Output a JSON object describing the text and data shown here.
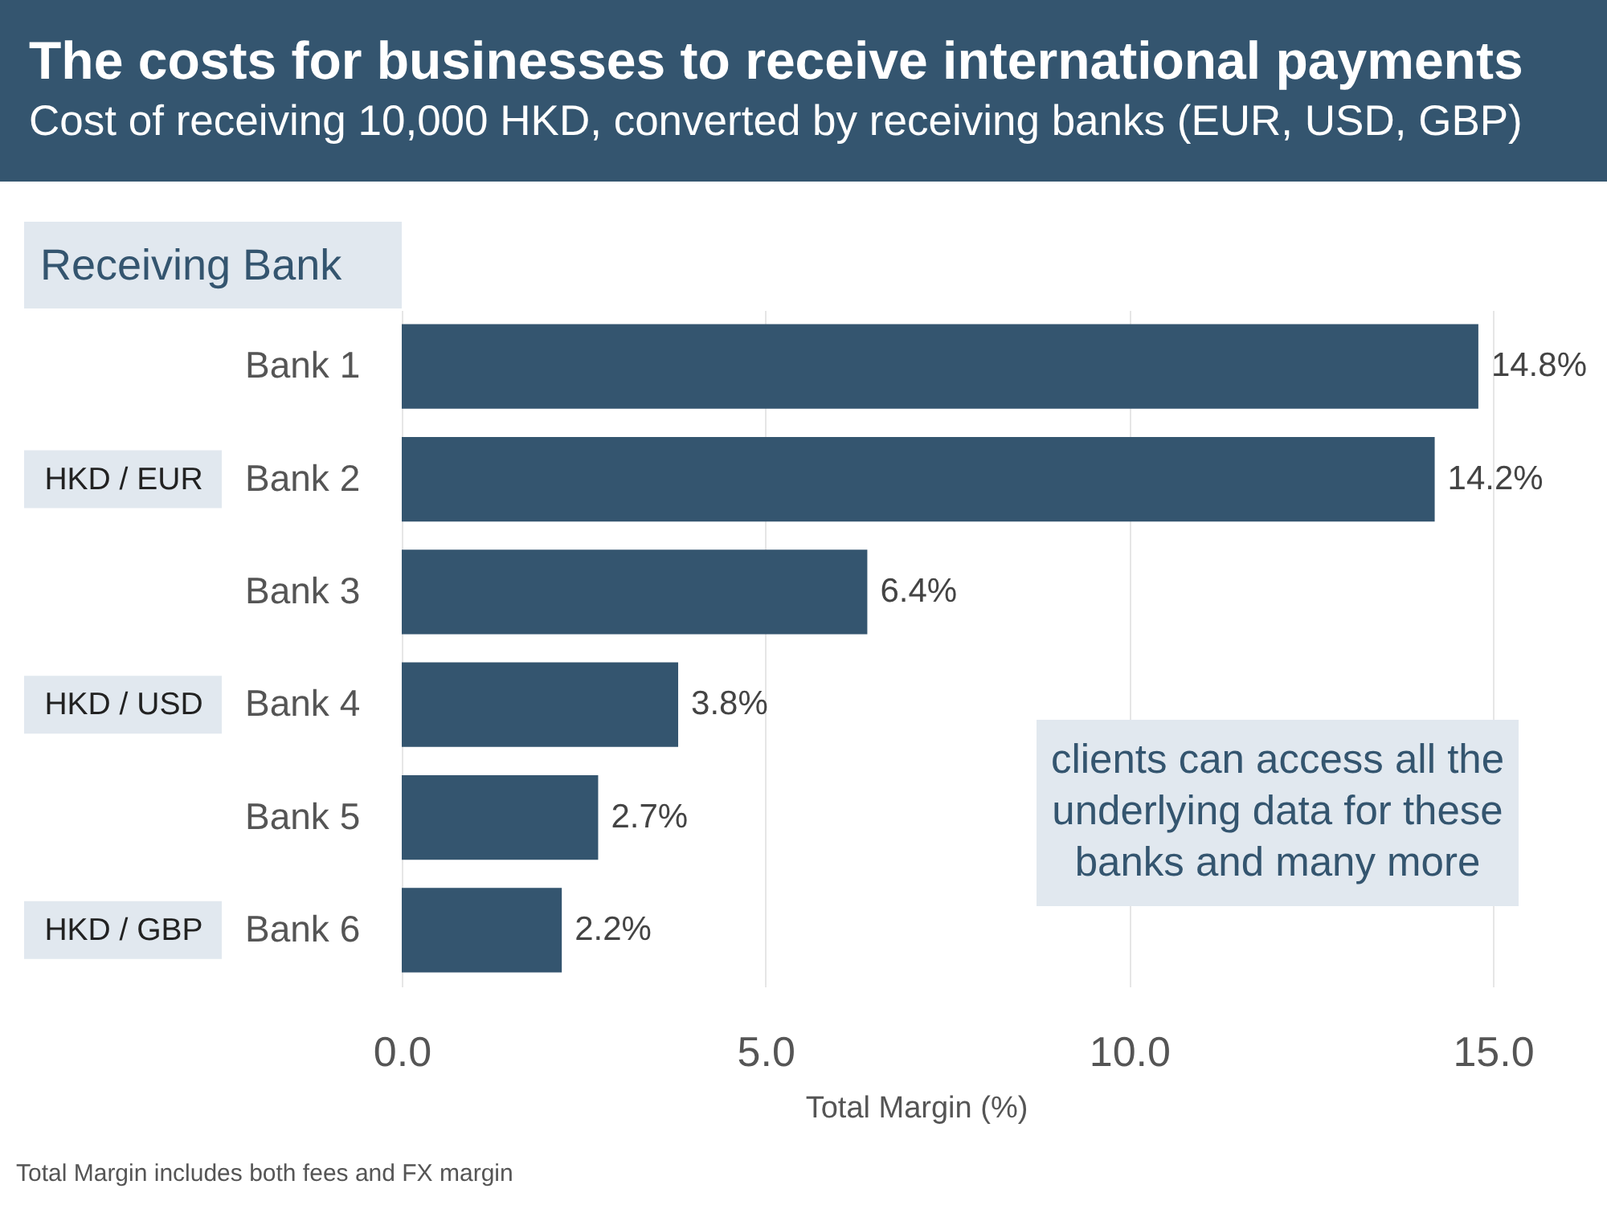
{
  "chart_data": {
    "type": "bar",
    "orientation": "horizontal",
    "title": "The costs for businesses to receive international payments",
    "subtitle": "Cost of receiving 10,000 HKD, converted by receiving banks (EUR, USD, GBP)",
    "ylabel": "Receiving Bank",
    "xlabel": "Total Margin (%)",
    "categories": [
      "Bank 1",
      "Bank 2",
      "Bank 3",
      "Bank 4",
      "Bank 5",
      "Bank 6"
    ],
    "values": [
      14.8,
      14.2,
      6.4,
      3.8,
      2.7,
      2.2
    ],
    "value_labels": [
      "14.8%",
      "14.2%",
      "6.4%",
      "3.8%",
      "2.7%",
      "2.2%"
    ],
    "color": "#34556f",
    "xlim": [
      0,
      15
    ],
    "xticks": [
      {
        "value": 0,
        "label": "0.0"
      },
      {
        "value": 5,
        "label": "5.0"
      },
      {
        "value": 10,
        "label": "10.0"
      },
      {
        "value": 15,
        "label": "15.0"
      }
    ],
    "grid": "x",
    "annotations": [
      "HKD / EUR",
      "HKD / USD",
      "HKD / GBP",
      "clients can access all the underlying data for these banks and many more",
      "Total Margin includes both fees and FX margin"
    ]
  }
}
